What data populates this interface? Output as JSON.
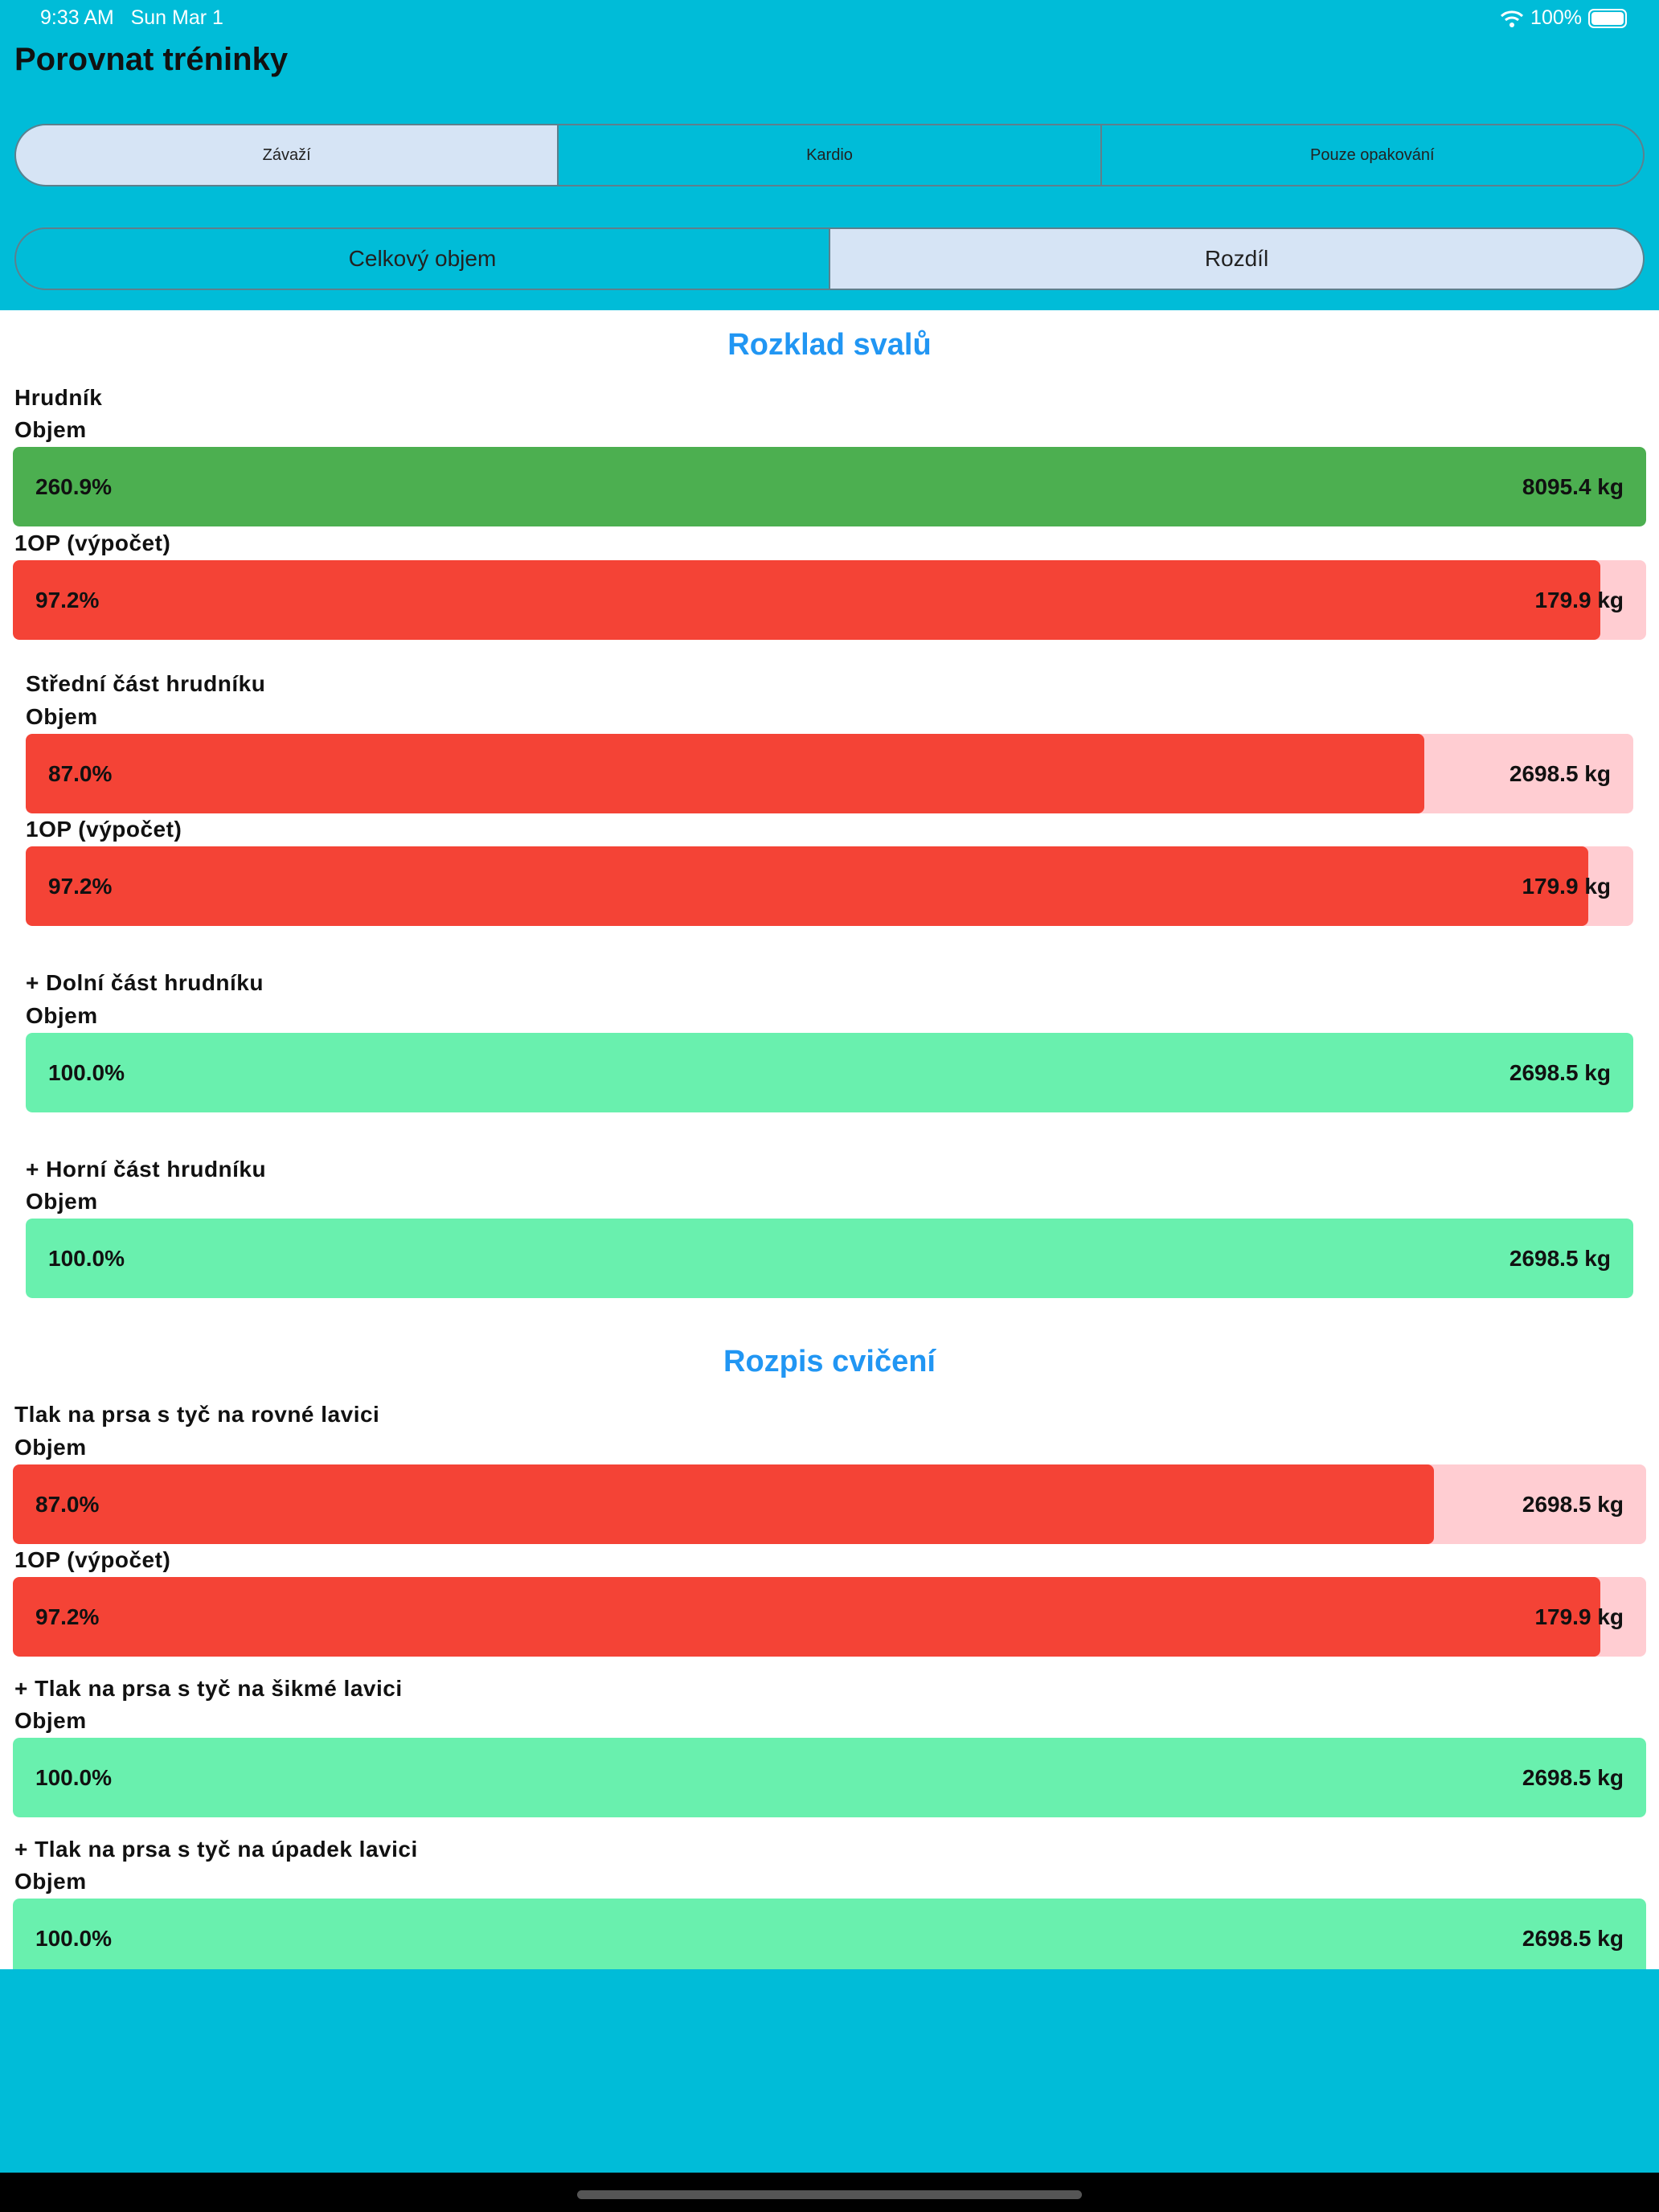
{
  "status": {
    "time": "9:33 AM",
    "date": "Sun Mar 1",
    "battery": "100%",
    "icons": [
      "wifi-icon",
      "battery-icon"
    ]
  },
  "header": {
    "title": "Porovnat tréninky"
  },
  "type_tabs": [
    {
      "label": "Závaží",
      "selected": true
    },
    {
      "label": "Kardio",
      "selected": false
    },
    {
      "label": "Pouze opakování",
      "selected": false
    }
  ],
  "mode_tabs": [
    {
      "label": "Celkový objem",
      "selected": false
    },
    {
      "label": "Rozdíl",
      "selected": true
    }
  ],
  "colors": {
    "increase": "#4CAF50",
    "decrease": "#F44336",
    "decrease_track": "#FFCDD2",
    "new": "#69F0AE",
    "accent": "#2196F3",
    "header_bg": "#00BCD8"
  },
  "muscles": {
    "title": "Rozklad svalů",
    "groups": [
      {
        "name": "Hrudník",
        "metrics": [
          {
            "label": "Objem",
            "percent": "260.9%",
            "value": "8095.4 kg",
            "fill": 1.0,
            "status": "increase"
          },
          {
            "label": "1OP (výpočet)",
            "percent": "97.2%",
            "value": "179.9 kg",
            "fill": 0.972,
            "status": "decrease"
          }
        ]
      },
      {
        "name": "Střední část hrudníku",
        "metrics": [
          {
            "label": "Objem",
            "percent": "87.0%",
            "value": "2698.5 kg",
            "fill": 0.87,
            "status": "decrease"
          },
          {
            "label": "1OP (výpočet)",
            "percent": "97.2%",
            "value": "179.9 kg",
            "fill": 0.972,
            "status": "decrease"
          }
        ]
      },
      {
        "name": "+ Dolní část hrudníku",
        "metrics": [
          {
            "label": "Objem",
            "percent": "100.0%",
            "value": "2698.5 kg",
            "fill": 1.0,
            "status": "new"
          }
        ]
      },
      {
        "name": "+ Horní část hrudníku",
        "metrics": [
          {
            "label": "Objem",
            "percent": "100.0%",
            "value": "2698.5 kg",
            "fill": 1.0,
            "status": "new"
          }
        ]
      }
    ]
  },
  "exercises": {
    "title": "Rozpis cvičení",
    "items": [
      {
        "name": "Tlak na prsa s tyč na rovné lavici",
        "metrics": [
          {
            "label": "Objem",
            "percent": "87.0%",
            "value": "2698.5 kg",
            "fill": 0.87,
            "status": "decrease"
          },
          {
            "label": "1OP (výpočet)",
            "percent": "97.2%",
            "value": "179.9 kg",
            "fill": 0.972,
            "status": "decrease"
          }
        ]
      },
      {
        "name": "+ Tlak na prsa s tyč na šikmé lavici",
        "metrics": [
          {
            "label": "Objem",
            "percent": "100.0%",
            "value": "2698.5 kg",
            "fill": 1.0,
            "status": "new"
          }
        ]
      },
      {
        "name": "+ Tlak na prsa s tyč na úpadek lavici",
        "metrics": [
          {
            "label": "Objem",
            "percent": "100.0%",
            "value": "2698.5 kg",
            "fill": 1.0,
            "status": "new"
          }
        ]
      }
    ]
  }
}
